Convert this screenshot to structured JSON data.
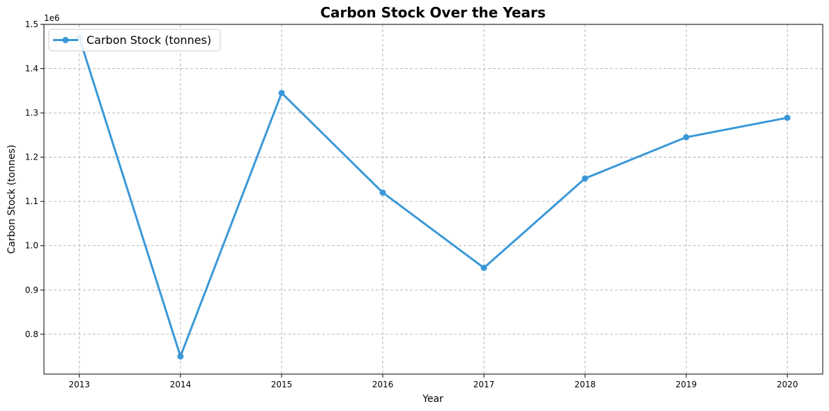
{
  "chart_data": {
    "type": "line",
    "title": "Carbon Stock Over the Years",
    "xlabel": "Year",
    "ylabel": "Carbon Stock (tonnes)",
    "y_offset_label": "1e6",
    "x_ticks": [
      "2013",
      "2014",
      "2015",
      "2016",
      "2017",
      "2018",
      "2019",
      "2020"
    ],
    "y_ticks": [
      "0.8",
      "0.9",
      "1.0",
      "1.1",
      "1.2",
      "1.3",
      "1.4",
      "1.5"
    ],
    "x": [
      2013,
      2014,
      2015,
      2016,
      2017,
      2018,
      2019,
      2020
    ],
    "xlim": [
      2012.65,
      2020.35
    ],
    "ylim": [
      710000,
      1500000
    ],
    "grid": true,
    "legend_position": "top-left",
    "series": [
      {
        "name": "Carbon Stock (tonnes)",
        "color": "#3a98d8",
        "marker": "circle",
        "values": [
          1470000,
          750000,
          1345000,
          1120000,
          950000,
          1152000,
          1245000,
          1289000
        ]
      }
    ]
  }
}
